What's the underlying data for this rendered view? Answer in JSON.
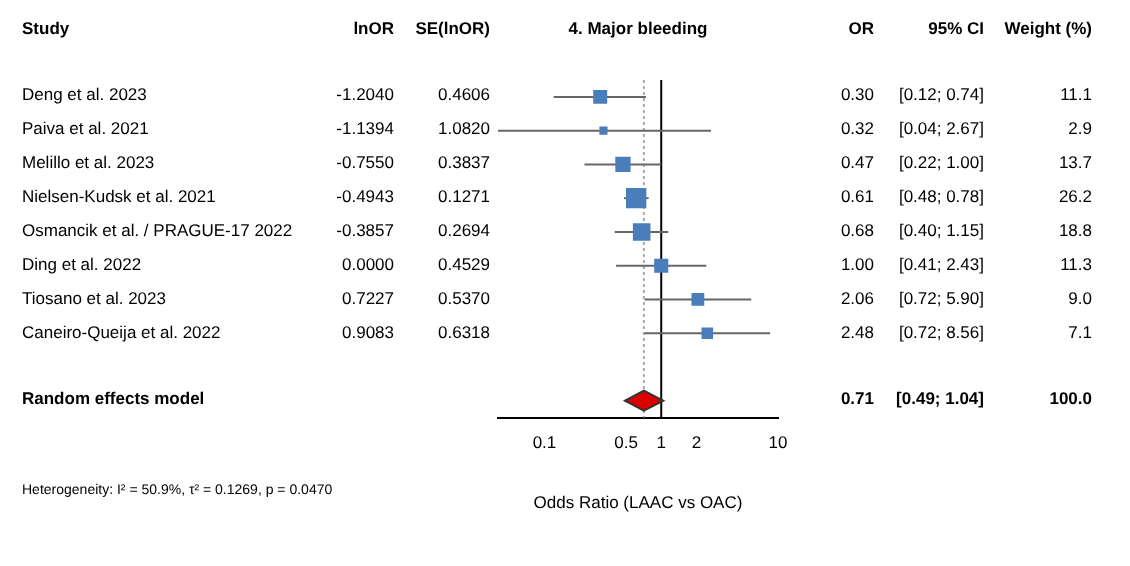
{
  "chart_data": [
    {
      "type": "other",
      "categories": [
        "Study",
        "lnOR",
        "SE(lnOR)"
      ],
      "cell_labels": [
        [
          "Deng et al. 2023",
          "-1.2040",
          "0.4606"
        ],
        [
          "Paiva et al. 2021",
          "-1.1394",
          "1.0820"
        ],
        [
          "Melillo et al. 2023",
          "-0.7550",
          "0.3837"
        ],
        [
          "Nielsen-Kudsk et al. 2021",
          "-0.4943",
          "0.1271"
        ],
        [
          "Osmancik et al. / PRAGUE-17 2022",
          "-0.3857",
          "0.2694"
        ],
        [
          "Ding et al. 2022",
          "0.0000",
          "0.4529"
        ],
        [
          "Tiosano et al. 2023",
          "0.7227",
          "0.5370"
        ],
        [
          "Caneiro-Queija et al. 2022",
          "0.9083",
          "0.6318"
        ],
        [
          null,
          null,
          null
        ],
        [
          "Random effects model",
          null,
          null
        ]
      ],
      "annotations": [
        "Heterogeneity: I² = 50.9%, τ² = 0.1269, p = 0.0470"
      ]
    },
    {
      "type": "scatter",
      "title": "4. Major bleeding",
      "xlabel": "Odds Ratio (LAAC vs OAC)",
      "orientation": "horizontal",
      "log": "x",
      "xlim": [
        0.04,
        10
      ],
      "xticks": [
        0.1,
        0.5,
        1,
        2,
        10
      ],
      "tick_labels": "x",
      "categories": [
        null,
        null,
        null,
        null,
        null,
        null,
        null,
        null,
        null,
        null
      ],
      "series": [
        {
          "color": "#4a7ebb",
          "marker": "square",
          "values": [
            0.3,
            0.32,
            0.47,
            0.61,
            0.68,
            1.0,
            2.06,
            2.48,
            null,
            null
          ],
          "errors": [
            [
              0.12,
              0.74
            ],
            [
              0.04,
              2.67
            ],
            [
              0.22,
              1.0
            ],
            [
              0.48,
              0.78
            ],
            [
              0.4,
              1.15
            ],
            [
              0.41,
              2.43
            ],
            [
              0.72,
              5.9
            ],
            [
              0.72,
              8.56
            ],
            null,
            null
          ],
          "sizes": [
            0.424,
            0.111,
            0.523,
            1,
            0.718,
            0.431,
            0.344,
            0.271,
            null,
            null
          ]
        },
        {
          "color": "#dd0000",
          "marker": "diamond",
          "values": [
            null,
            null,
            null,
            null,
            null,
            null,
            null,
            null,
            null,
            0.71
          ],
          "errors": [
            null,
            null,
            null,
            null,
            null,
            null,
            null,
            null,
            null,
            [
              0.49,
              1.04
            ]
          ]
        }
      ],
      "ref_lines": [
        {
          "axis": "x",
          "value": 1,
          "color": "#000000",
          "line_style": "solid"
        },
        {
          "axis": "x",
          "value": 0.71,
          "color": "#aaaaaa",
          "line_style": "dotted"
        }
      ]
    },
    {
      "type": "other",
      "categories": [
        "OR",
        "95% CI",
        "Weight (%)"
      ],
      "cell_labels": [
        [
          "0.30",
          "[0.12; 0.74]",
          "11.1"
        ],
        [
          "0.32",
          "[0.04; 2.67]",
          "2.9"
        ],
        [
          "0.47",
          "[0.22; 1.00]",
          "13.7"
        ],
        [
          "0.61",
          "[0.48; 0.78]",
          "26.2"
        ],
        [
          "0.68",
          "[0.40; 1.15]",
          "18.8"
        ],
        [
          "1.00",
          "[0.41; 2.43]",
          "11.3"
        ],
        [
          "2.06",
          "[0.72; 5.90]",
          "9.0"
        ],
        [
          "2.48",
          "[0.72; 8.56]",
          "7.1"
        ],
        [
          null,
          null,
          null
        ],
        [
          "0.71",
          "[0.49; 1.04]",
          "100.0"
        ]
      ]
    }
  ]
}
